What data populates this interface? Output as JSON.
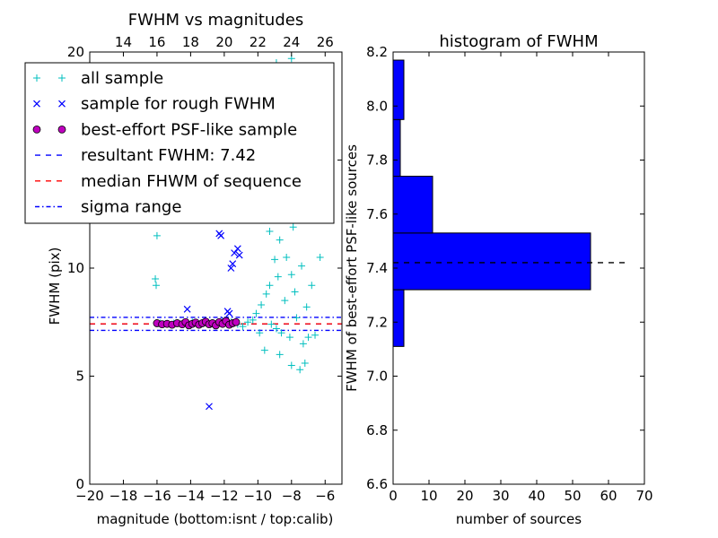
{
  "chart_data": [
    {
      "type": "scatter",
      "title": "FWHM vs magnitudes",
      "xlabel": "magnitude (bottom:isnt / top:calib)",
      "ylabel": "FWHM (pix)",
      "xlim": [
        -20,
        -5
      ],
      "ylim": [
        0,
        20
      ],
      "xticks": [
        "−20",
        "−18",
        "−16",
        "−14",
        "−12",
        "−10",
        "−8",
        "−6"
      ],
      "xtick_values": [
        -20,
        -18,
        -16,
        -14,
        -12,
        -10,
        -8,
        -6
      ],
      "yticks": [
        "0",
        "5",
        "10",
        "15",
        "20"
      ],
      "ytick_values": [
        0,
        5,
        10,
        15,
        20
      ],
      "top_axis": {
        "offset": 32,
        "ticks": [
          "14",
          "16",
          "18",
          "20",
          "22",
          "24",
          "26"
        ],
        "tick_values": [
          14,
          16,
          18,
          20,
          22,
          24,
          26
        ]
      },
      "legend": {
        "placement": "upper-left",
        "entries": [
          {
            "label": "all sample",
            "marker": "plus",
            "color": "#00bfbf"
          },
          {
            "label": "sample for rough FWHM",
            "marker": "x",
            "color": "#0000ff"
          },
          {
            "label": "best-effort PSF-like sample",
            "marker": "circle",
            "color": "#bf00bf"
          },
          {
            "label": "resultant FWHM: 7.42",
            "line": "dashed",
            "color": "#0000ff"
          },
          {
            "label": "median FHWM of sequence",
            "line": "dashed",
            "color": "#ff0000"
          },
          {
            "label": "sigma range",
            "line": "dashdot",
            "color": "#0000ff"
          }
        ]
      },
      "series": [
        {
          "name": "all sample",
          "marker": "plus",
          "color": "#00bfbf",
          "points": [
            [
              -16.1,
              9.5
            ],
            [
              -16.05,
              9.2
            ],
            [
              -16.0,
              11.5
            ],
            [
              -15.8,
              7.45
            ],
            [
              -15.6,
              7.4
            ],
            [
              -15.0,
              7.45
            ],
            [
              -14.4,
              7.4
            ],
            [
              -13.9,
              7.5
            ],
            [
              -13.3,
              7.45
            ],
            [
              -12.8,
              7.4
            ],
            [
              -12.1,
              7.45
            ],
            [
              -11.6,
              7.5
            ],
            [
              -11.2,
              7.4
            ],
            [
              -10.9,
              7.3
            ],
            [
              -10.6,
              7.5
            ],
            [
              -10.3,
              7.6
            ],
            [
              -10.1,
              7.9
            ],
            [
              -9.8,
              8.3
            ],
            [
              -9.5,
              8.8
            ],
            [
              -9.3,
              9.2
            ],
            [
              -9.2,
              7.4
            ],
            [
              -9.0,
              10.4
            ],
            [
              -8.9,
              7.2
            ],
            [
              -8.8,
              9.6
            ],
            [
              -8.7,
              11.3
            ],
            [
              -8.6,
              7.0
            ],
            [
              -8.5,
              12.3
            ],
            [
              -8.4,
              8.5
            ],
            [
              -8.3,
              10.5
            ],
            [
              -8.2,
              13.5
            ],
            [
              -8.1,
              6.8
            ],
            [
              -8.0,
              9.7
            ],
            [
              -7.9,
              11.9
            ],
            [
              -7.8,
              8.9
            ],
            [
              -7.7,
              7.7
            ],
            [
              -7.6,
              14.4
            ],
            [
              -7.5,
              12.7
            ],
            [
              -7.4,
              10.1
            ],
            [
              -7.3,
              6.5
            ],
            [
              -7.2,
              5.6
            ],
            [
              -7.1,
              8.2
            ],
            [
              -7.0,
              6.8
            ],
            [
              -6.8,
              9.2
            ],
            [
              -6.6,
              6.9
            ],
            [
              -6.3,
              10.5
            ],
            [
              -8.9,
              19.5
            ],
            [
              -8.5,
              19.2
            ],
            [
              -8.0,
              19.7
            ],
            [
              -7.6,
              18.1
            ],
            [
              -8.2,
              16.2
            ],
            [
              -9.1,
              17.4
            ],
            [
              -8.7,
              6.0
            ],
            [
              -8.0,
              5.5
            ],
            [
              -7.5,
              5.3
            ],
            [
              -9.6,
              6.2
            ],
            [
              -9.9,
              7.0
            ],
            [
              -8.3,
              14.9
            ],
            [
              -7.8,
              15.8
            ],
            [
              -8.6,
              12.9
            ],
            [
              -9.3,
              11.7
            ]
          ]
        },
        {
          "name": "sample for rough FWHM",
          "marker": "x",
          "color": "#0000ff",
          "points": [
            [
              -12.9,
              3.6
            ],
            [
              -14.2,
              8.1
            ],
            [
              -12.2,
              11.5
            ],
            [
              -12.3,
              11.6
            ],
            [
              -11.6,
              10.0
            ],
            [
              -11.5,
              10.2
            ],
            [
              -11.4,
              10.7
            ],
            [
              -11.2,
              10.9
            ],
            [
              -11.1,
              10.6
            ],
            [
              -11.8,
              8.0
            ],
            [
              -12.0,
              7.6
            ],
            [
              -11.7,
              7.9
            ]
          ]
        },
        {
          "name": "best-effort PSF-like sample",
          "marker": "circle",
          "color": "#bf00bf",
          "points": [
            [
              -16.0,
              7.45
            ],
            [
              -15.7,
              7.4
            ],
            [
              -15.4,
              7.42
            ],
            [
              -15.1,
              7.38
            ],
            [
              -14.8,
              7.45
            ],
            [
              -14.5,
              7.4
            ],
            [
              -14.3,
              7.5
            ],
            [
              -14.1,
              7.35
            ],
            [
              -13.9,
              7.42
            ],
            [
              -13.7,
              7.48
            ],
            [
              -13.5,
              7.38
            ],
            [
              -13.3,
              7.45
            ],
            [
              -13.1,
              7.52
            ],
            [
              -12.9,
              7.4
            ],
            [
              -12.7,
              7.45
            ],
            [
              -12.5,
              7.35
            ],
            [
              -12.3,
              7.5
            ],
            [
              -12.1,
              7.42
            ],
            [
              -11.9,
              7.55
            ],
            [
              -11.7,
              7.38
            ],
            [
              -11.5,
              7.45
            ],
            [
              -11.3,
              7.5
            ]
          ]
        }
      ],
      "lines": [
        {
          "name": "resultant FWHM: 7.42",
          "y": 7.42,
          "style": "dashed",
          "color": "#0000ff"
        },
        {
          "name": "median FHWM of sequence",
          "y": 7.42,
          "style": "dashed",
          "color": "#ff0000"
        },
        {
          "name": "sigma range",
          "y": 7.72,
          "style": "dashdot",
          "color": "#0000ff"
        },
        {
          "name": "sigma range",
          "y": 7.12,
          "style": "dashdot",
          "color": "#0000ff"
        }
      ]
    },
    {
      "type": "bar",
      "orientation": "horizontal",
      "title": "histogram of FWHM",
      "xlabel": "number of sources",
      "ylabel": "FWHM of best-effort PSF-like sources",
      "xlim": [
        0,
        70
      ],
      "ylim": [
        6.6,
        8.2
      ],
      "xticks": [
        "0",
        "10",
        "20",
        "30",
        "40",
        "50",
        "60",
        "70"
      ],
      "xtick_values": [
        0,
        10,
        20,
        30,
        40,
        50,
        60,
        70
      ],
      "yticks": [
        "6.6",
        "6.8",
        "7.0",
        "7.2",
        "7.4",
        "7.6",
        "7.8",
        "8.0",
        "8.2"
      ],
      "ytick_values": [
        6.6,
        6.8,
        7.0,
        7.2,
        7.4,
        7.6,
        7.8,
        8.0,
        8.2
      ],
      "bins": [
        {
          "from": 7.11,
          "to": 7.32,
          "count": 3
        },
        {
          "from": 7.32,
          "to": 7.53,
          "count": 55
        },
        {
          "from": 7.53,
          "to": 7.74,
          "count": 11
        },
        {
          "from": 7.74,
          "to": 7.95,
          "count": 2
        },
        {
          "from": 7.95,
          "to": 8.17,
          "count": 3
        }
      ],
      "bar_color": "#0000ff",
      "reference_line": {
        "y": 7.42,
        "from": 0,
        "to": 65,
        "style": "dashed",
        "color": "#000000"
      }
    }
  ]
}
